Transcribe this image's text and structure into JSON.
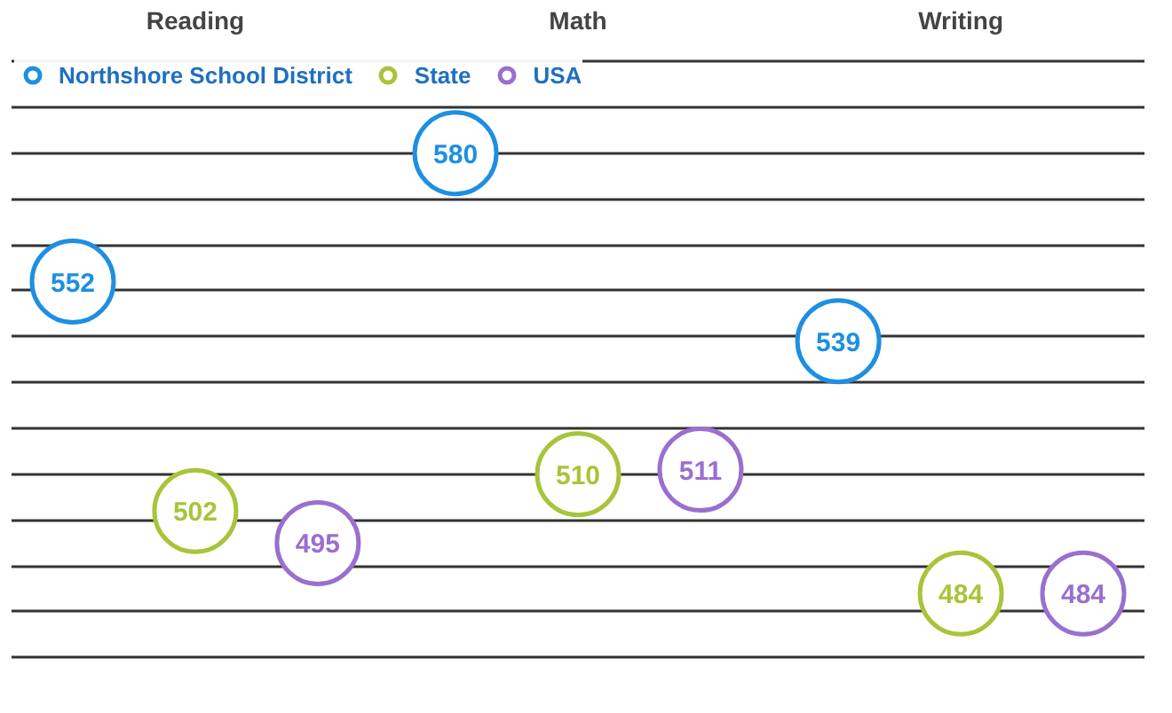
{
  "chart_data": {
    "type": "scatter",
    "categories": [
      "Reading",
      "Math",
      "Writing"
    ],
    "series": [
      {
        "name": "Northshore School District",
        "color": "#1e8fe1",
        "values": [
          552,
          580,
          539
        ]
      },
      {
        "name": "State",
        "color": "#a8c43a",
        "values": [
          502,
          510,
          484
        ]
      },
      {
        "name": "USA",
        "color": "#9a6fcf",
        "values": [
          495,
          511,
          484
        ]
      }
    ],
    "grid": "y",
    "marker": "circle",
    "data_labels": true,
    "legend": "top left",
    "tick_labels": "x"
  }
}
